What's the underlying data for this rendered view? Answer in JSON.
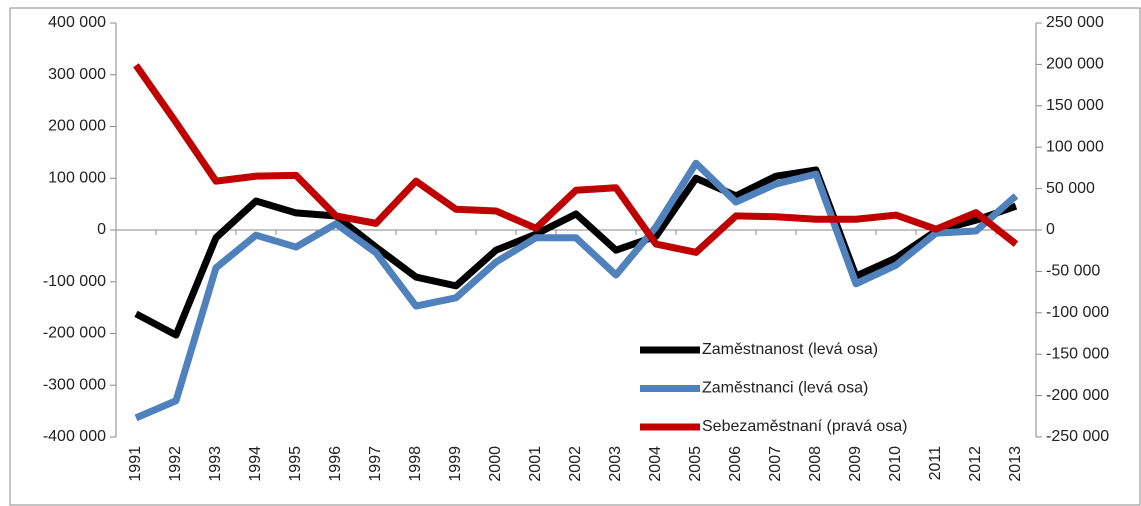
{
  "chart_data": {
    "type": "line",
    "categories": [
      "1991",
      "1992",
      "1993",
      "1994",
      "1995",
      "1996",
      "1997",
      "1998",
      "1999",
      "2000",
      "2001",
      "2002",
      "2003",
      "2004",
      "2005",
      "2006",
      "2007",
      "2008",
      "2009",
      "2010",
      "2011",
      "2012",
      "2013"
    ],
    "series": [
      {
        "name": "Zaměstnanost (levá osa)",
        "color": "#000000",
        "values": [
          -162000,
          -203000,
          -15000,
          56000,
          33000,
          27000,
          -33000,
          -91000,
          -108000,
          -39000,
          -8000,
          31000,
          -39000,
          -12000,
          100000,
          66000,
          104000,
          116000,
          -89000,
          -54000,
          -2000,
          19000,
          46000
        ]
      },
      {
        "name": "Zaměstnanci (levá osa)",
        "color": "#4f81bd",
        "values": [
          -363000,
          -330000,
          -73000,
          -10000,
          -33000,
          12000,
          -44000,
          -147000,
          -131000,
          -62000,
          -15000,
          -15000,
          -87000,
          6000,
          129000,
          54000,
          89000,
          108000,
          -104000,
          -68000,
          -6000,
          -2000,
          66000
        ]
      },
      {
        "name": "Sebezaměstnaní (pravá osa)",
        "color": "#c00000",
        "axis": "y2",
        "values": [
          199000,
          130000,
          59000,
          65000,
          66000,
          17000,
          8000,
          59000,
          25000,
          23000,
          2000,
          48000,
          51000,
          -17000,
          -27000,
          17000,
          16000,
          13000,
          13000,
          18000,
          1000,
          21000,
          -17000
        ]
      }
    ],
    "ylim": [
      -400000,
      400000
    ],
    "yticks": [
      {
        "value": -400000,
        "label": "-400 000"
      },
      {
        "value": -300000,
        "label": "-300 000"
      },
      {
        "value": -200000,
        "label": "-200 000"
      },
      {
        "value": -100000,
        "label": "-100 000"
      },
      0,
      {
        "value": 100000,
        "label": "100 000"
      },
      {
        "value": 200000,
        "label": "200 000"
      },
      {
        "value": 300000,
        "label": "300 000"
      },
      {
        "value": 400000,
        "label": "400 000"
      }
    ],
    "y2lim": [
      -250000,
      250000
    ],
    "y2ticks": [
      {
        "value": -250000,
        "label": "-250 000"
      },
      {
        "value": -200000,
        "label": "-200 000"
      },
      {
        "value": -150000,
        "label": "-150 000"
      },
      {
        "value": -100000,
        "label": "-100 000"
      },
      {
        "value": -50000,
        "label": "-50 000"
      },
      0,
      {
        "value": 50000,
        "label": "50 000"
      },
      {
        "value": 100000,
        "label": "100 000"
      },
      {
        "value": 150000,
        "label": "150 000"
      },
      {
        "value": 200000,
        "label": "200 000"
      },
      {
        "value": 250000,
        "label": "250 000"
      }
    ],
    "legend": "lower right"
  }
}
